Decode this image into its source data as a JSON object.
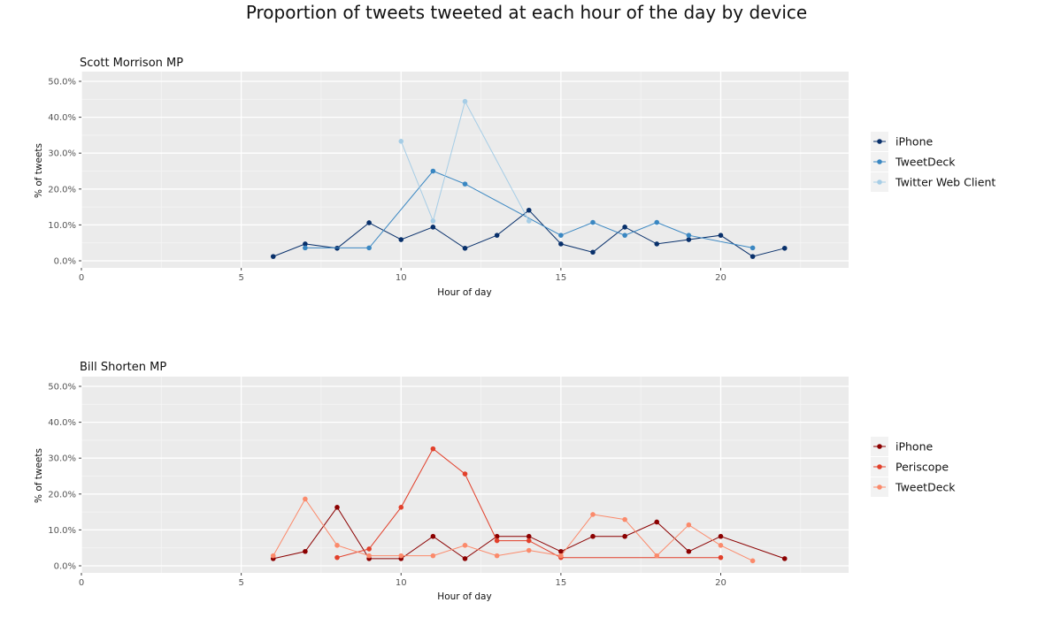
{
  "title": "Proportion of tweets tweeted at each hour of the day by device",
  "chart_data": [
    {
      "type": "line",
      "title": "Scott Morrison MP",
      "xlabel": "Hour of day",
      "ylabel": "% of tweets",
      "xlim": [
        0,
        24
      ],
      "ylim": [
        0,
        50
      ],
      "x_ticks": [
        0,
        5,
        10,
        15,
        20
      ],
      "x_tick_labels": [
        "0",
        "5",
        "10",
        "15",
        "20"
      ],
      "y_ticks": [
        0,
        10,
        20,
        30,
        40,
        50
      ],
      "y_tick_labels": [
        "0.0%",
        "10.0%",
        "20.0%",
        "30.0%",
        "40.0%",
        "50.0%"
      ],
      "grid": true,
      "legend_position": "right",
      "series": [
        {
          "name": "iPhone",
          "color": "#08306b",
          "points": [
            [
              6,
              1.2
            ],
            [
              7,
              4.7
            ],
            [
              8,
              3.5
            ],
            [
              9,
              10.6
            ],
            [
              10,
              5.9
            ],
            [
              11,
              9.4
            ],
            [
              12,
              3.5
            ],
            [
              13,
              7.1
            ],
            [
              14,
              14.1
            ],
            [
              15,
              4.7
            ],
            [
              16,
              2.4
            ],
            [
              17,
              9.4
            ],
            [
              18,
              4.7
            ],
            [
              19,
              5.9
            ],
            [
              20,
              7.1
            ],
            [
              21,
              1.2
            ],
            [
              22,
              3.5
            ]
          ]
        },
        {
          "name": "TweetDeck",
          "color": "#3a87c2",
          "points": [
            [
              7,
              3.6
            ],
            [
              9,
              3.6
            ],
            [
              11,
              25.0
            ],
            [
              12,
              21.4
            ],
            [
              15,
              7.1
            ],
            [
              16,
              10.7
            ],
            [
              17,
              7.1
            ],
            [
              18,
              10.7
            ],
            [
              19,
              7.1
            ],
            [
              21,
              3.6
            ]
          ]
        },
        {
          "name": "Twitter Web Client",
          "color": "#a6cde6",
          "points": [
            [
              10,
              33.3
            ],
            [
              11,
              11.1
            ],
            [
              12,
              44.4
            ],
            [
              14,
              11.1
            ]
          ]
        }
      ]
    },
    {
      "type": "line",
      "title": "Bill Shorten MP",
      "xlabel": "Hour of day",
      "ylabel": "% of tweets",
      "xlim": [
        0,
        24
      ],
      "ylim": [
        0,
        50
      ],
      "x_ticks": [
        0,
        5,
        10,
        15,
        20
      ],
      "x_tick_labels": [
        "0",
        "5",
        "10",
        "15",
        "20"
      ],
      "y_ticks": [
        0,
        10,
        20,
        30,
        40,
        50
      ],
      "y_tick_labels": [
        "0.0%",
        "10.0%",
        "20.0%",
        "30.0%",
        "40.0%",
        "50.0%"
      ],
      "grid": true,
      "legend_position": "right",
      "series": [
        {
          "name": "iPhone",
          "color": "#8b0000",
          "points": [
            [
              6,
              2.0
            ],
            [
              7,
              4.0
            ],
            [
              8,
              16.3
            ],
            [
              9,
              2.0
            ],
            [
              10,
              2.0
            ],
            [
              11,
              8.2
            ],
            [
              12,
              2.0
            ],
            [
              13,
              8.2
            ],
            [
              14,
              8.2
            ],
            [
              15,
              4.0
            ],
            [
              16,
              8.2
            ],
            [
              17,
              8.2
            ],
            [
              18,
              12.2
            ],
            [
              19,
              4.0
            ],
            [
              20,
              8.2
            ],
            [
              22,
              2.0
            ]
          ]
        },
        {
          "name": "Periscope",
          "color": "#e2402b",
          "points": [
            [
              8,
              2.3
            ],
            [
              9,
              4.7
            ],
            [
              10,
              16.3
            ],
            [
              11,
              32.6
            ],
            [
              12,
              25.6
            ],
            [
              13,
              7.0
            ],
            [
              14,
              7.0
            ],
            [
              15,
              2.3
            ],
            [
              20,
              2.3
            ]
          ]
        },
        {
          "name": "TweetDeck",
          "color": "#fb8a6b",
          "points": [
            [
              6,
              2.8
            ],
            [
              7,
              18.6
            ],
            [
              8,
              5.7
            ],
            [
              9,
              2.8
            ],
            [
              10,
              2.8
            ],
            [
              11,
              2.8
            ],
            [
              12,
              5.7
            ],
            [
              13,
              2.8
            ],
            [
              14,
              4.3
            ],
            [
              15,
              2.8
            ],
            [
              16,
              14.3
            ],
            [
              17,
              12.9
            ],
            [
              18,
              2.8
            ],
            [
              19,
              11.4
            ],
            [
              20,
              5.7
            ],
            [
              21,
              1.4
            ]
          ]
        }
      ]
    }
  ]
}
